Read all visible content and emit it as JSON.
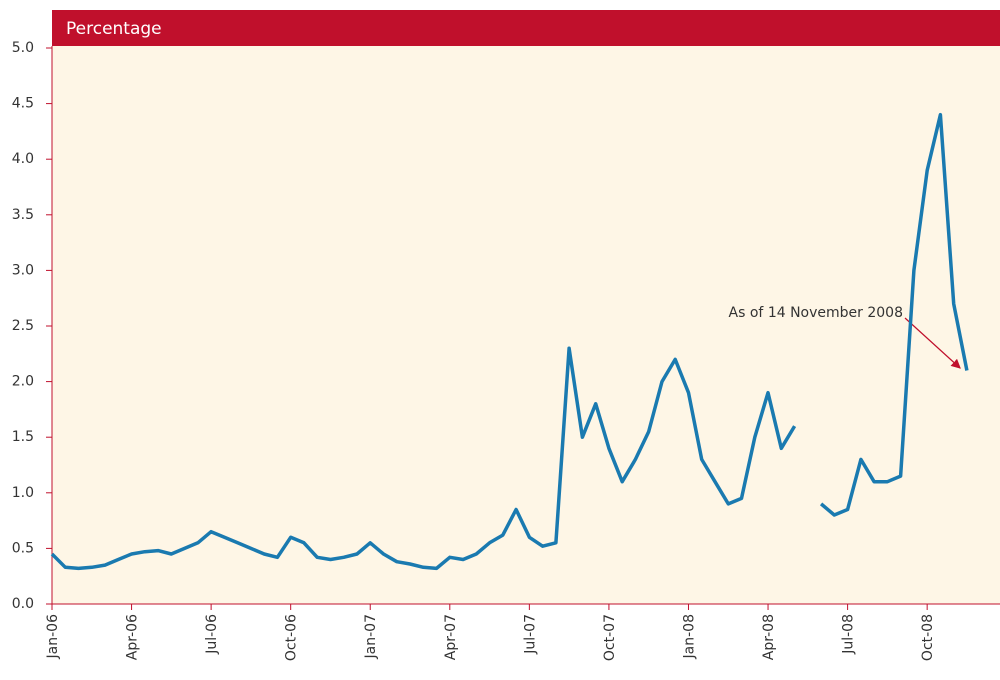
{
  "chart_data": {
    "type": "line",
    "title": "Percentage",
    "annotation": "As of 14 November 2008",
    "categories": [
      "Jan-06",
      null,
      null,
      null,
      null,
      null,
      "Apr-06",
      null,
      null,
      null,
      null,
      null,
      "Jul-06",
      null,
      null,
      null,
      null,
      null,
      "Oct-06",
      null,
      null,
      null,
      null,
      null,
      "Jan-07",
      null,
      null,
      null,
      null,
      null,
      "Apr-07",
      null,
      null,
      null,
      null,
      null,
      "Jul-07",
      null,
      null,
      null,
      null,
      null,
      "Oct-07",
      null,
      null,
      null,
      null,
      null,
      "Jan-08",
      null,
      null,
      null,
      null,
      null,
      "Apr-08",
      null,
      null,
      null,
      null,
      null,
      "Jul-08",
      null,
      null,
      null,
      null,
      null,
      "Oct-08",
      null,
      null,
      null
    ],
    "values": [
      0.45,
      0.33,
      0.32,
      0.33,
      0.35,
      0.4,
      0.45,
      0.47,
      0.48,
      0.45,
      0.5,
      0.55,
      0.65,
      0.6,
      0.55,
      0.5,
      0.45,
      0.42,
      0.6,
      0.55,
      0.42,
      0.4,
      0.42,
      0.45,
      0.55,
      0.45,
      0.38,
      0.36,
      0.33,
      0.32,
      0.42,
      0.4,
      0.45,
      0.55,
      0.62,
      0.85,
      0.6,
      0.52,
      0.55,
      2.3,
      1.5,
      1.8,
      1.4,
      1.1,
      1.3,
      1.55,
      2.0,
      2.2,
      1.9,
      1.3,
      1.1,
      0.9,
      0.95,
      1.5,
      1.9,
      1.4,
      1.6,
      null,
      0.9,
      0.8,
      0.85,
      1.3,
      1.1,
      1.1,
      1.15,
      3.0,
      3.9,
      4.4,
      2.7,
      2.1
    ],
    "color": "#1a7ab0",
    "ylim": [
      0,
      5
    ],
    "yticks": [
      {
        "value": 0,
        "label": "0.0"
      },
      0.5,
      {
        "value": 1,
        "label": "1.0"
      },
      1.5,
      {
        "value": 2,
        "label": "2.0"
      },
      2.5,
      {
        "value": 3,
        "label": "3.0"
      },
      3.5,
      {
        "value": 4,
        "label": "4.0"
      },
      4.5,
      {
        "value": 5,
        "label": "5.0"
      }
    ],
    "grid": false
  }
}
